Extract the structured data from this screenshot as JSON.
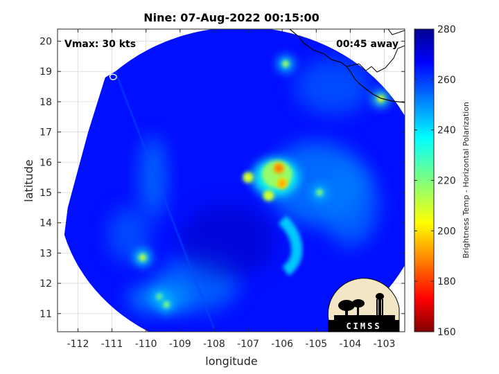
{
  "chart_data": {
    "type": "heatmap",
    "title": "Nine: 07-Aug-2022 00:15:00",
    "xlabel": "longitude",
    "ylabel": "latitude",
    "xlim": [
      -112.6,
      -102.4
    ],
    "ylim": [
      10.4,
      20.4
    ],
    "xticks": [
      -112,
      -111,
      -110,
      -109,
      -108,
      -107,
      -106,
      -105,
      -104,
      -103
    ],
    "yticks": [
      11,
      12,
      13,
      14,
      15,
      16,
      17,
      18,
      19,
      20
    ],
    "grid": true,
    "annotations": {
      "vmax": "Vmax: 30 kts",
      "away": "00:45 away"
    },
    "colorbar": {
      "label": "Brightness Temp - Horizontal Polarization",
      "range": [
        160,
        280
      ],
      "ticks": [
        160,
        180,
        200,
        220,
        240,
        260,
        280
      ],
      "colormap": "jet"
    },
    "field": {
      "swath_center": [
        -107.3,
        15.1
      ],
      "swath_radius_deg": 5.4,
      "background_k": 265,
      "storm_core": [
        {
          "lon": -106.1,
          "lat": 15.8,
          "min_k": 185
        },
        {
          "lon": -106.0,
          "lat": 15.3,
          "min_k": 190
        },
        {
          "lon": -107.0,
          "lat": 15.5,
          "min_k": 205
        },
        {
          "lon": -106.4,
          "lat": 14.9,
          "min_k": 205
        }
      ],
      "convective_cells": [
        {
          "lon": -110.1,
          "lat": 12.85,
          "min_k": 210
        },
        {
          "lon": -105.9,
          "lat": 19.25,
          "min_k": 215
        },
        {
          "lon": -103.1,
          "lat": 18.1,
          "min_k": 205
        },
        {
          "lon": -109.6,
          "lat": 11.55,
          "min_k": 220
        },
        {
          "lon": -109.4,
          "lat": 11.3,
          "min_k": 220
        },
        {
          "lon": -104.9,
          "lat": 15.0,
          "min_k": 220
        }
      ]
    }
  },
  "logo": {
    "text": "CIMSS"
  },
  "colors": {
    "land_outline": "#000000",
    "grid": "#d9d9d9"
  }
}
